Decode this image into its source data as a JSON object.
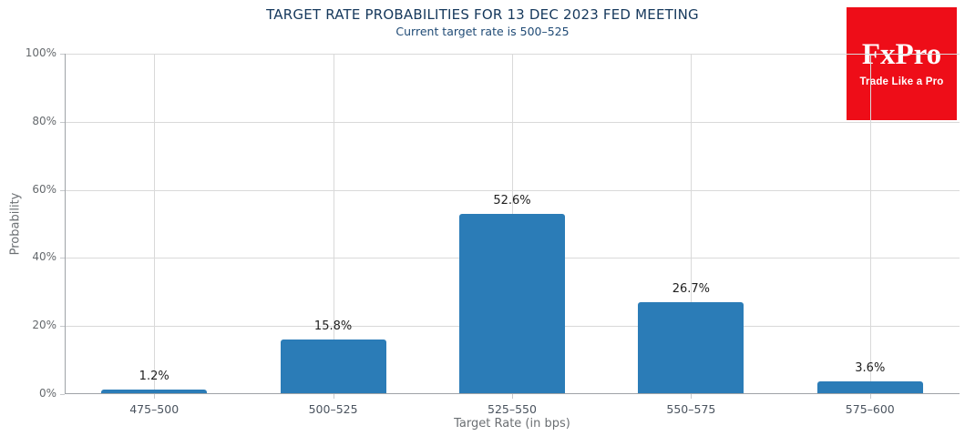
{
  "chart_data": {
    "type": "bar",
    "title": "TARGET RATE PROBABILITIES FOR 13 DEC 2023 FED MEETING",
    "subtitle": "Current target rate is 500–525",
    "categories": [
      "475–500",
      "500–525",
      "525–550",
      "550–575",
      "575–600"
    ],
    "values": [
      1.2,
      15.8,
      52.6,
      26.7,
      3.6
    ],
    "value_labels": [
      "1.2%",
      "15.8%",
      "52.6%",
      "26.7%",
      "3.6%"
    ],
    "xlabel": "Target Rate (in bps)",
    "ylabel": "Probability",
    "ylim": [
      0,
      100
    ],
    "yticks": [
      0,
      20,
      40,
      60,
      80,
      100
    ],
    "ytick_labels": [
      "0%",
      "20%",
      "40%",
      "60%",
      "80%",
      "100%"
    ],
    "grid": true,
    "legend": false
  },
  "logo": {
    "brand": "FxPro",
    "tagline": "Trade Like a Pro",
    "bg_color": "#ee0d18",
    "text_color": "#ffffff"
  },
  "colors": {
    "bar": "#2b7cb7",
    "title": "#15385c",
    "subtitle": "#1f4a75",
    "grid": "#d9d9d9",
    "axis_line": "#9fa3a7",
    "tick_mark": "#c6c9cc",
    "ytick_label": "#65696d",
    "category_label": "#4b545f",
    "data_label": "#212121",
    "axis_title": "#6b6f73",
    "background": "#ffffff"
  }
}
